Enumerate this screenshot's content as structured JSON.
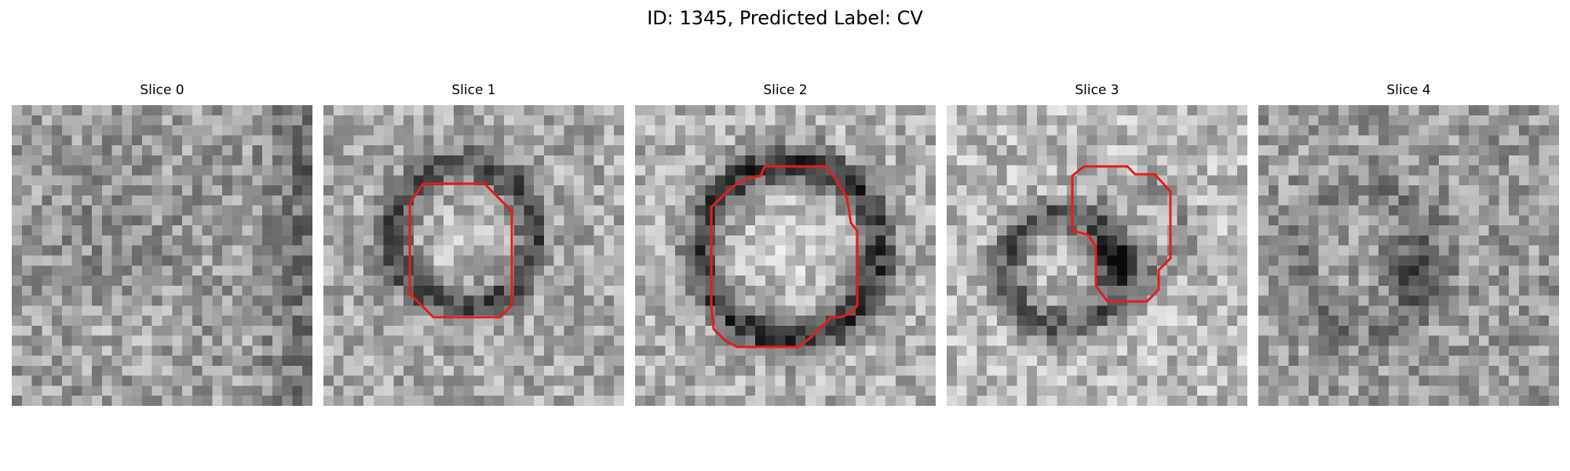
{
  "title": "ID: 1345, Predicted Label: CV",
  "panels": [
    {
      "label": "Slice 0",
      "has_contour": false
    },
    {
      "label": "Slice 1",
      "has_contour": true
    },
    {
      "label": "Slice 2",
      "has_contour": true
    },
    {
      "label": "Slice 3",
      "has_contour": true
    },
    {
      "label": "Slice 4",
      "has_contour": false
    }
  ],
  "colors": {
    "contour": "#e51d1d",
    "background": "#ffffff"
  }
}
